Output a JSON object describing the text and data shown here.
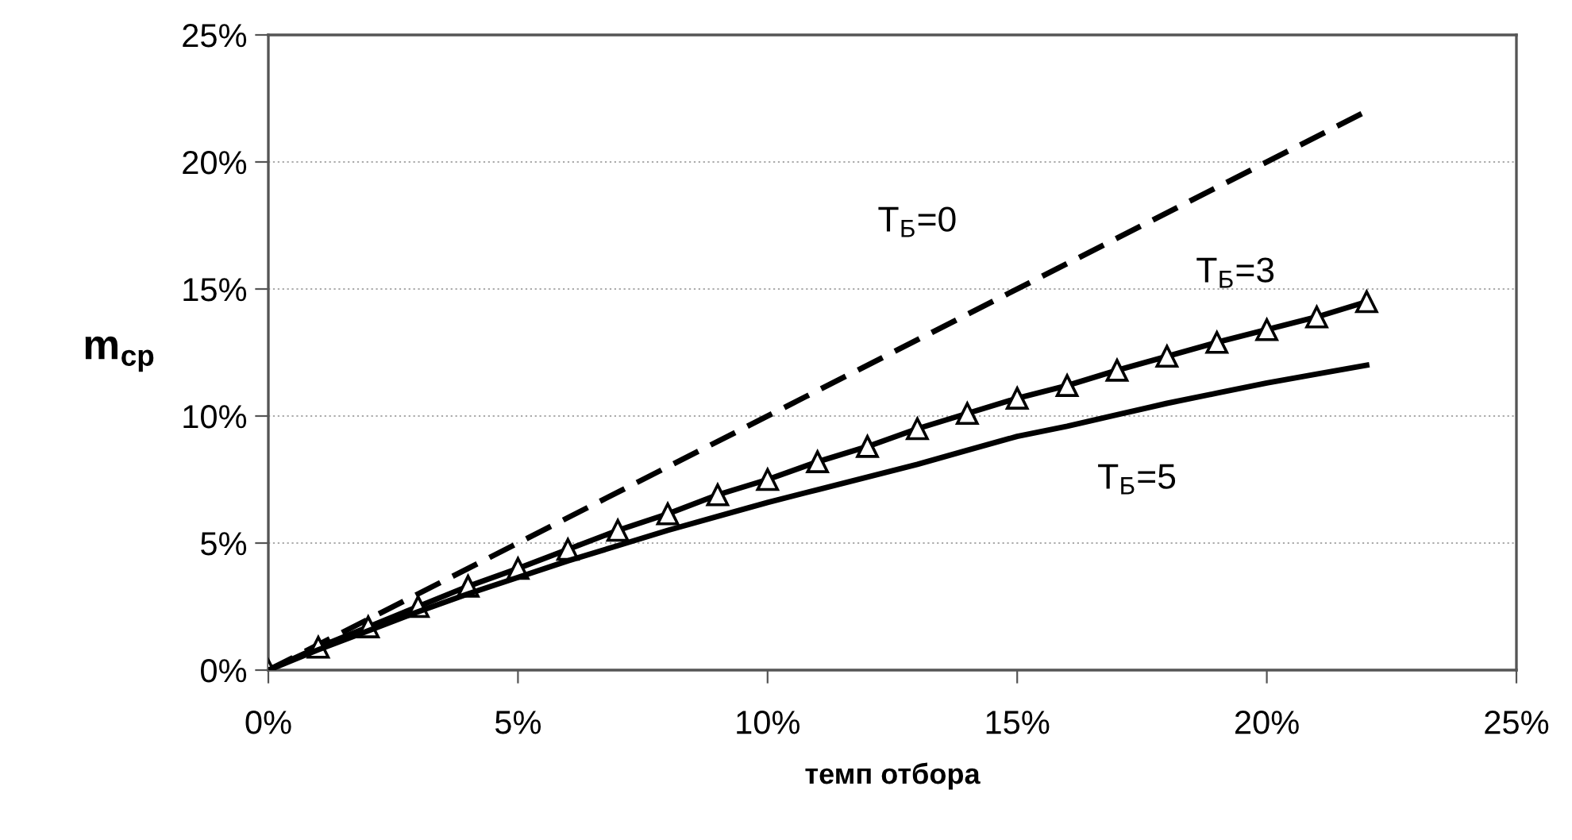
{
  "chart_data": {
    "type": "line",
    "xlabel": "темп отбора",
    "ylabel": "m$_{cp}$",
    "xlim": [
      0,
      25
    ],
    "ylim": [
      0,
      25
    ],
    "xticks": [
      {
        "value": 0,
        "label": "0%"
      },
      {
        "value": 5,
        "label": "5%"
      },
      {
        "value": 10,
        "label": "10%"
      },
      {
        "value": 15,
        "label": "15%"
      },
      {
        "value": 20,
        "label": "20%"
      },
      {
        "value": 25,
        "label": "25%"
      }
    ],
    "yticks": [
      {
        "value": 0,
        "label": "0%"
      },
      {
        "value": 5,
        "label": "5%"
      },
      {
        "value": 10,
        "label": "10%"
      },
      {
        "value": 15,
        "label": "15%"
      },
      {
        "value": 20,
        "label": "20%"
      },
      {
        "value": 25,
        "label": "25%"
      }
    ],
    "grid": "y",
    "series": [
      {
        "name": "T$_{Б}$=0",
        "color": "#000000",
        "line_style": "dashed",
        "marker": "none",
        "x": [
          0,
          22
        ],
        "values": [
          0,
          22
        ]
      },
      {
        "name": "T$_{Б}$=3",
        "color": "#000000",
        "line_style": "solid",
        "marker": "triangle",
        "x": [
          0,
          1,
          2,
          3,
          4,
          5,
          6,
          7,
          8,
          9,
          10,
          11,
          12,
          13,
          14,
          15,
          16,
          17,
          18,
          19,
          20,
          21,
          22
        ],
        "values": [
          0,
          0.9,
          1.7,
          2.5,
          3.3,
          4.0,
          4.75,
          5.5,
          6.15,
          6.9,
          7.5,
          8.2,
          8.8,
          9.5,
          10.1,
          10.7,
          11.2,
          11.8,
          12.35,
          12.9,
          13.4,
          13.9,
          14.5
        ]
      },
      {
        "name": "T$_{Б}$=5",
        "color": "#000000",
        "line_style": "solid",
        "marker": "none",
        "x": [
          0,
          1,
          2,
          3,
          4,
          5,
          6,
          7,
          8,
          9,
          10,
          11,
          12,
          13,
          14,
          15,
          16,
          17,
          18,
          19,
          20,
          21,
          22
        ],
        "values": [
          0,
          0.8,
          1.55,
          2.3,
          3.0,
          3.65,
          4.3,
          4.9,
          5.5,
          6.05,
          6.6,
          7.1,
          7.6,
          8.1,
          8.65,
          9.2,
          9.6,
          10.05,
          10.5,
          10.9,
          11.3,
          11.65,
          12.0
        ]
      }
    ]
  }
}
